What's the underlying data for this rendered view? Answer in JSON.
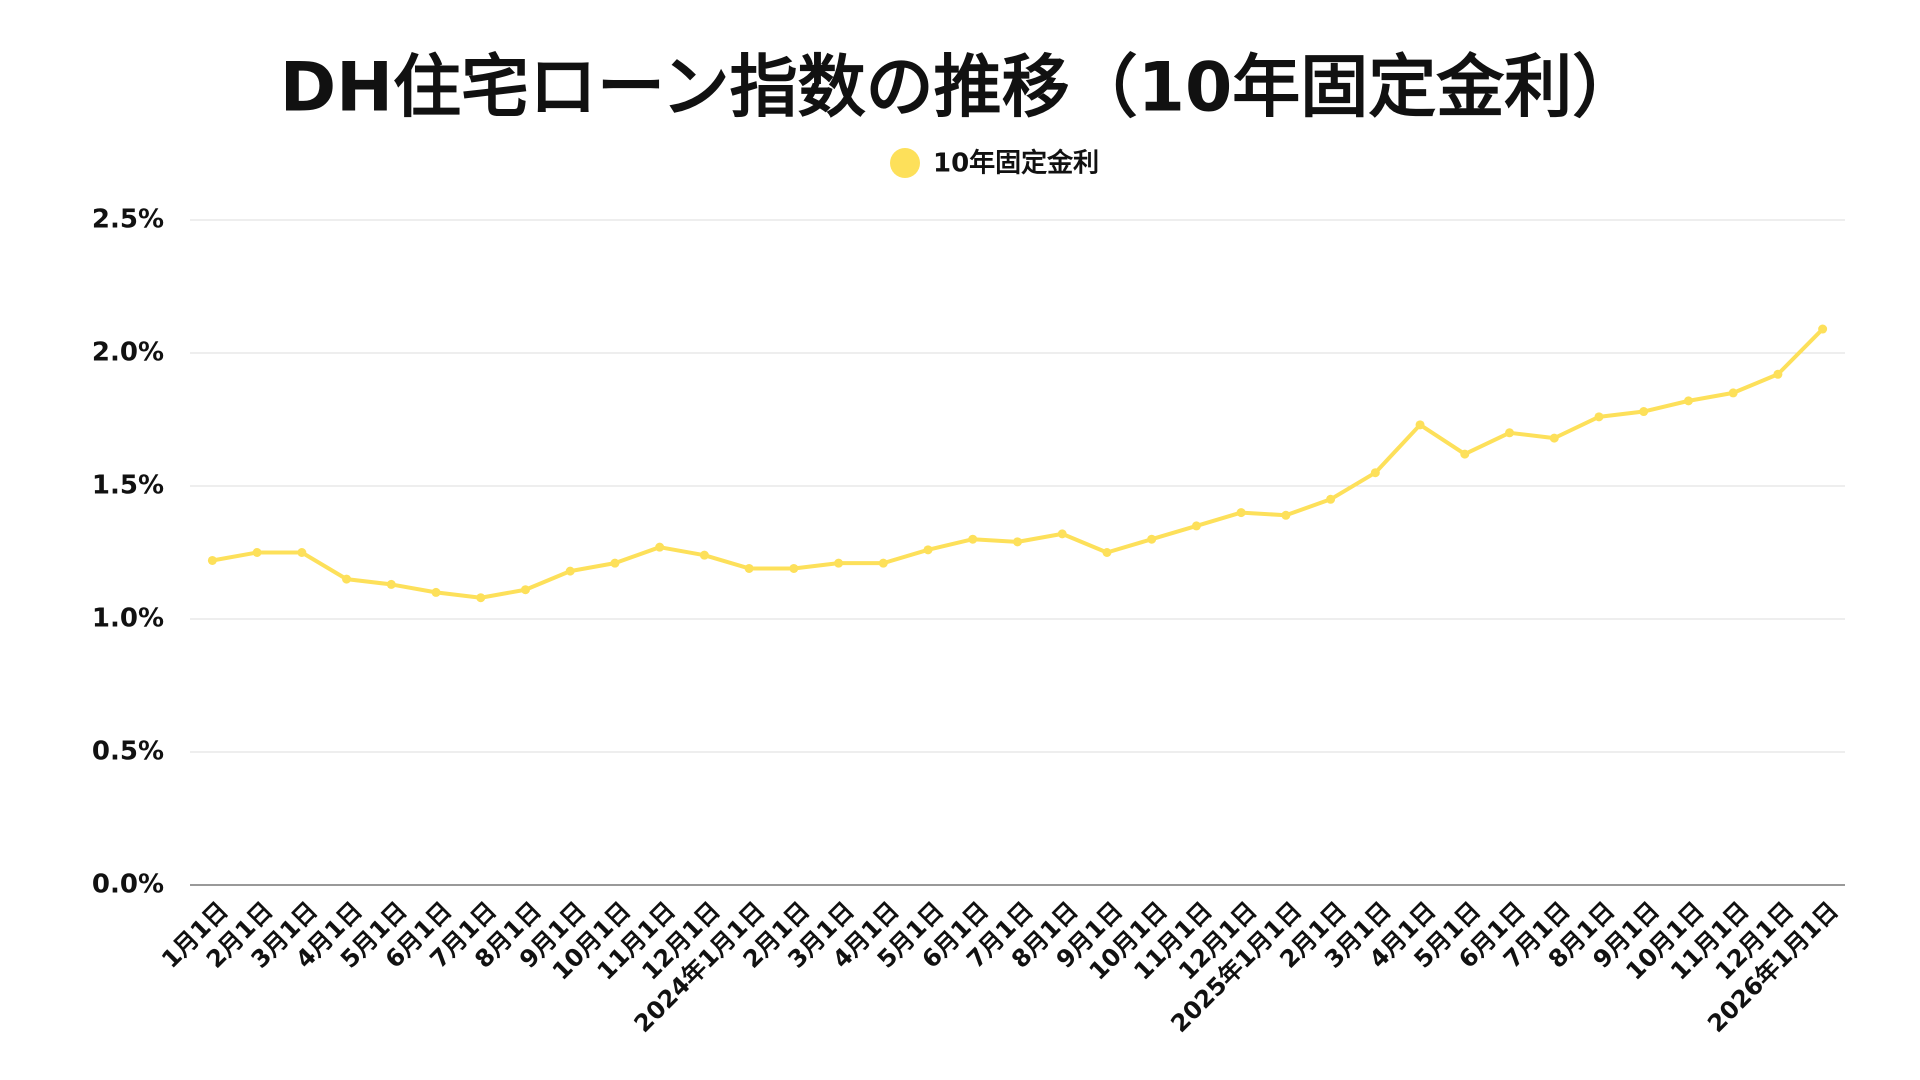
{
  "chart_data": {
    "type": "line",
    "title": "DH住宅ローン指数の推移（10年固定金利）",
    "categories": [
      "1月1日",
      "2月1日",
      "3月1日",
      "4月1日",
      "5月1日",
      "6月1日",
      "7月1日",
      "8月1日",
      "9月1日",
      "10月1日",
      "11月1日",
      "12月1日",
      "2024年1月1日",
      "2月1日",
      "3月1日",
      "4月1日",
      "5月1日",
      "6月1日",
      "7月1日",
      "8月1日",
      "9月1日",
      "10月1日",
      "11月1日",
      "12月1日",
      "2025年1月1日",
      "2月1日",
      "3月1日",
      "4月1日",
      "5月1日",
      "6月1日",
      "7月1日",
      "8月1日",
      "9月1日",
      "10月1日",
      "11月1日",
      "12月1日",
      "2026年1月1日"
    ],
    "series": [
      {
        "name": "10年固定金利",
        "color": "#fde05a",
        "values": [
          1.22,
          1.25,
          1.25,
          1.15,
          1.13,
          1.1,
          1.08,
          1.11,
          1.18,
          1.21,
          1.27,
          1.24,
          1.19,
          1.19,
          1.21,
          1.21,
          1.26,
          1.3,
          1.29,
          1.32,
          1.25,
          1.3,
          1.35,
          1.4,
          1.39,
          1.45,
          1.55,
          1.73,
          1.62,
          1.7,
          1.68,
          1.76,
          1.78,
          1.82,
          1.85,
          1.92,
          2.09
        ]
      }
    ],
    "ylim": [
      0,
      2.5
    ],
    "yticks": [
      {
        "value": 0,
        "label": "0.0%"
      },
      {
        "value": 0.5,
        "label": "0.5%"
      },
      {
        "value": 1,
        "label": "1.0%"
      },
      {
        "value": 1.5,
        "label": "1.5%"
      },
      {
        "value": 2,
        "label": "2.0%"
      },
      {
        "value": 2.5,
        "label": "2.5%"
      }
    ],
    "grid": true,
    "legend": "top"
  }
}
